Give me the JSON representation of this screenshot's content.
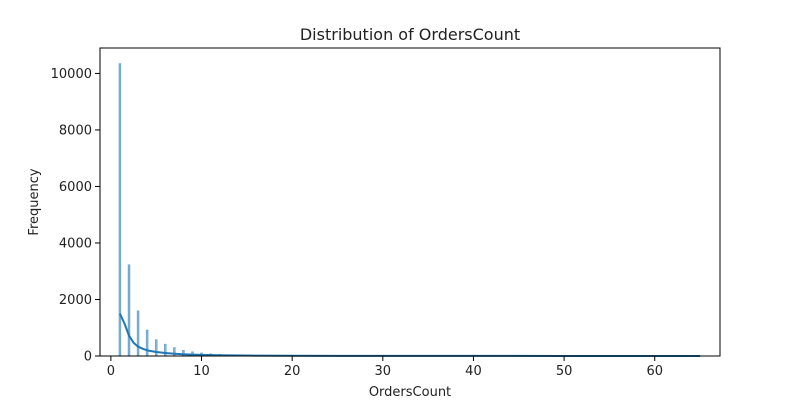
{
  "chart_data": {
    "type": "bar",
    "title": "Distribution of OrdersCount",
    "xlabel": "OrdersCount",
    "ylabel": "Frequency",
    "xlim": [
      -1.2,
      67.2
    ],
    "ylim": [
      0,
      10900
    ],
    "xticks": [
      0,
      10,
      20,
      30,
      40,
      50,
      60
    ],
    "yticks": [
      0,
      2000,
      4000,
      6000,
      8000,
      10000
    ],
    "grid": false,
    "colors": {
      "bar": "#1f77b4",
      "kde": "#1f77b4",
      "axis": "#000000"
    },
    "histogram": {
      "name": "",
      "x": [
        1,
        2,
        3,
        4,
        5,
        6,
        7,
        8,
        9,
        10,
        11,
        12,
        13,
        14,
        15,
        16,
        17,
        18,
        19,
        20,
        22,
        24,
        26,
        28,
        30,
        35,
        40,
        45,
        50,
        55,
        60,
        65
      ],
      "values": [
        10350,
        3230,
        1600,
        920,
        580,
        420,
        300,
        200,
        150,
        110,
        80,
        60,
        45,
        35,
        30,
        22,
        18,
        14,
        12,
        10,
        8,
        6,
        5,
        4,
        3,
        2,
        2,
        1,
        1,
        1,
        1,
        1
      ]
    },
    "kde": {
      "name": "",
      "x": [
        1,
        1.5,
        2,
        2.5,
        3,
        3.5,
        4,
        5,
        6,
        7,
        8,
        9,
        10,
        12,
        15,
        20,
        25,
        30,
        40,
        50,
        60,
        65
      ],
      "values": [
        1500,
        1150,
        720,
        470,
        330,
        260,
        200,
        140,
        105,
        80,
        60,
        48,
        38,
        26,
        16,
        9,
        6,
        4,
        3,
        2,
        1,
        1
      ]
    }
  }
}
